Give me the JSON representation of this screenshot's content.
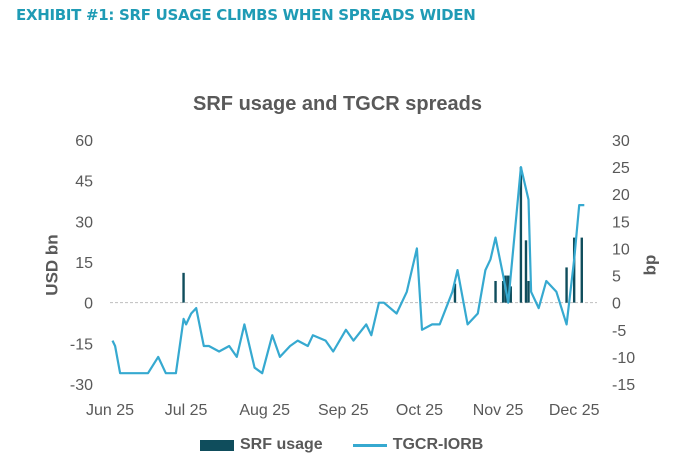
{
  "header": {
    "exhibit": "EXHIBIT #1:  SRF USAGE CLIMBS WHEN SPREADS WIDEN"
  },
  "chart_data": {
    "type": "bar+line",
    "title": "SRF usage and TGCR spreads",
    "ylabel_left": "USD bn",
    "ylabel_right": "bp",
    "yleft": {
      "ticks": [
        60,
        45,
        30,
        15,
        0,
        -15,
        -30
      ],
      "lim": [
        -30,
        60
      ]
    },
    "yright": {
      "ticks": [
        30,
        25,
        20,
        15,
        10,
        5,
        0,
        -5,
        -10,
        -15
      ],
      "lim": [
        -15,
        30
      ]
    },
    "xticks": [
      "Jun 25",
      "Jul 25",
      "Aug 25",
      "Sep 25",
      "Oct 25",
      "Nov 25",
      "Dec 25"
    ],
    "legend": [
      "SRF usage",
      "TGCR-IORB"
    ],
    "legend_position": "bottom",
    "colors": {
      "bars": "#0f4d5c",
      "line": "#36a9d0"
    },
    "series": [
      {
        "name": "SRF usage",
        "type": "bar",
        "unit": "USD bn",
        "points": [
          [
            "2025-06-30",
            11
          ],
          [
            "2025-10-15",
            7
          ],
          [
            "2025-10-31",
            8
          ],
          [
            "2025-11-03",
            8
          ],
          [
            "2025-11-04",
            10
          ],
          [
            "2025-11-05",
            10
          ],
          [
            "2025-11-06",
            6
          ],
          [
            "2025-11-10",
            50
          ],
          [
            "2025-11-12",
            23
          ],
          [
            "2025-11-13",
            8
          ],
          [
            "2025-11-28",
            13
          ],
          [
            "2025-12-01",
            24
          ],
          [
            "2025-12-04",
            24
          ]
        ]
      },
      {
        "name": "TGCR-IORB",
        "type": "line",
        "unit": "bp",
        "points": [
          [
            "2025-06-02",
            -7
          ],
          [
            "2025-06-03",
            -8
          ],
          [
            "2025-06-05",
            -13
          ],
          [
            "2025-06-10",
            -13
          ],
          [
            "2025-06-16",
            -13
          ],
          [
            "2025-06-20",
            -10
          ],
          [
            "2025-06-23",
            -13
          ],
          [
            "2025-06-27",
            -13
          ],
          [
            "2025-06-30",
            -3
          ],
          [
            "2025-07-01",
            -4
          ],
          [
            "2025-07-03",
            -2
          ],
          [
            "2025-07-05",
            -1
          ],
          [
            "2025-07-08",
            -8
          ],
          [
            "2025-07-10",
            -8
          ],
          [
            "2025-07-14",
            -9
          ],
          [
            "2025-07-18",
            -8
          ],
          [
            "2025-07-21",
            -10
          ],
          [
            "2025-07-24",
            -4
          ],
          [
            "2025-07-28",
            -12
          ],
          [
            "2025-07-31",
            -13
          ],
          [
            "2025-08-04",
            -6
          ],
          [
            "2025-08-07",
            -10
          ],
          [
            "2025-08-11",
            -8
          ],
          [
            "2025-08-14",
            -7
          ],
          [
            "2025-08-18",
            -8
          ],
          [
            "2025-08-20",
            -6
          ],
          [
            "2025-08-25",
            -7
          ],
          [
            "2025-08-28",
            -9
          ],
          [
            "2025-09-02",
            -5
          ],
          [
            "2025-09-05",
            -7
          ],
          [
            "2025-09-10",
            -4
          ],
          [
            "2025-09-12",
            -6
          ],
          [
            "2025-09-15",
            0
          ],
          [
            "2025-09-17",
            0
          ],
          [
            "2025-09-22",
            -2
          ],
          [
            "2025-09-26",
            2
          ],
          [
            "2025-09-30",
            10
          ],
          [
            "2025-10-02",
            -5
          ],
          [
            "2025-10-06",
            -4
          ],
          [
            "2025-10-09",
            -4
          ],
          [
            "2025-10-14",
            2
          ],
          [
            "2025-10-16",
            6
          ],
          [
            "2025-10-20",
            -4
          ],
          [
            "2025-10-24",
            -2
          ],
          [
            "2025-10-27",
            6
          ],
          [
            "2025-10-29",
            8
          ],
          [
            "2025-10-31",
            12
          ],
          [
            "2025-11-03",
            5
          ],
          [
            "2025-11-05",
            0
          ],
          [
            "2025-11-10",
            25
          ],
          [
            "2025-11-13",
            19
          ],
          [
            "2025-11-14",
            2
          ],
          [
            "2025-11-17",
            -1
          ],
          [
            "2025-11-20",
            4
          ],
          [
            "2025-11-24",
            2
          ],
          [
            "2025-11-28",
            -4
          ],
          [
            "2025-12-01",
            8
          ],
          [
            "2025-12-03",
            18
          ],
          [
            "2025-12-05",
            18
          ]
        ]
      }
    ]
  }
}
